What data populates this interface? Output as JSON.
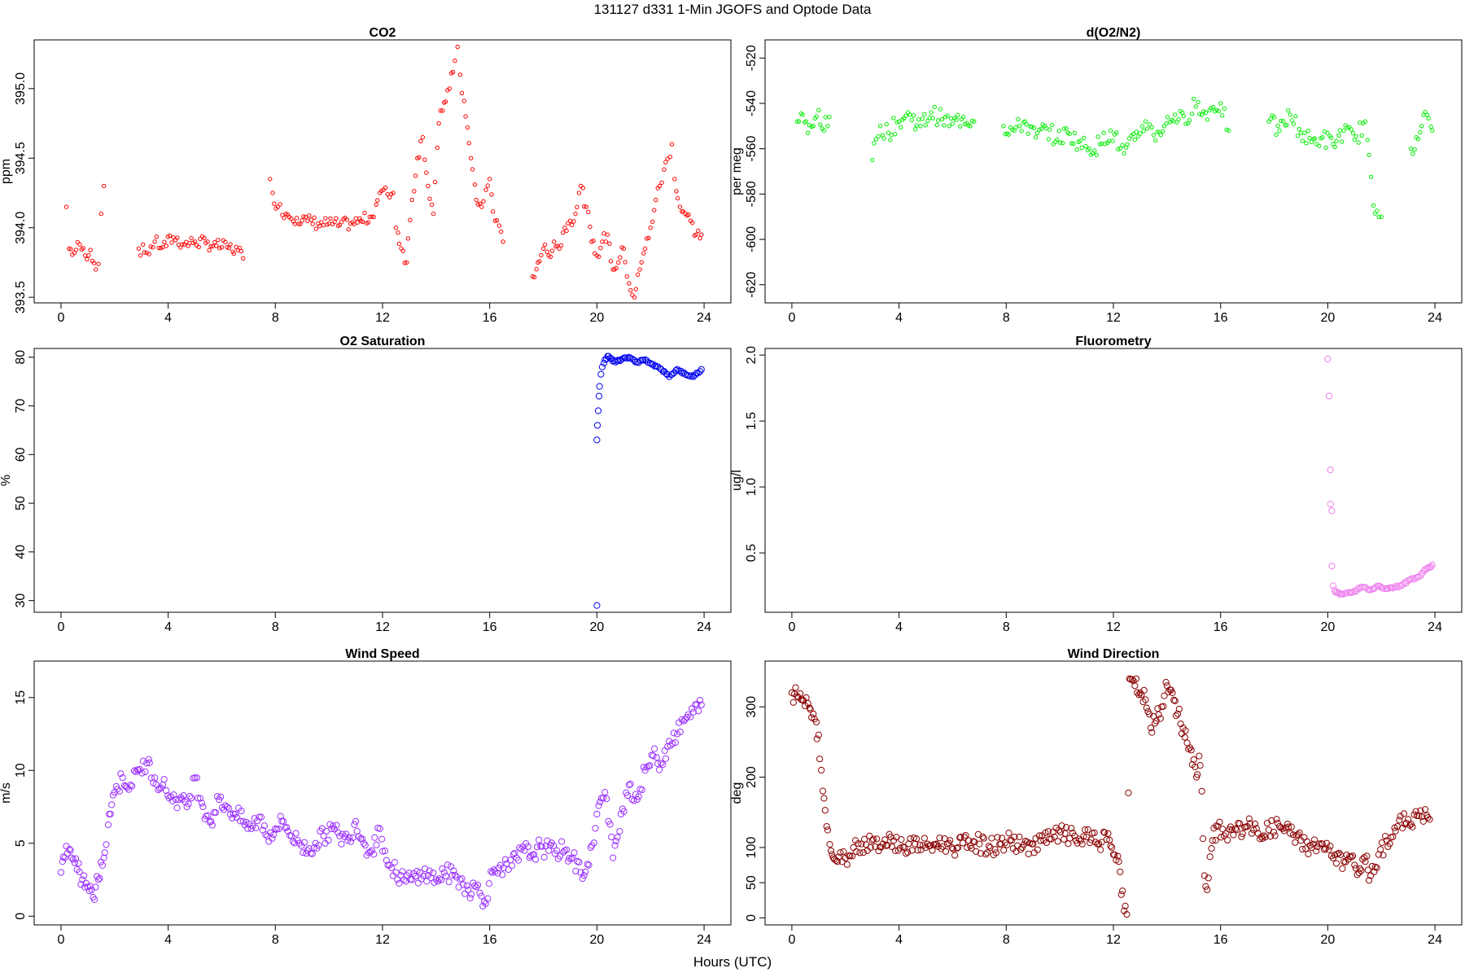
{
  "title": "131127   d331   1-Min  JGOFS and Optode Data",
  "xlabel": "Hours (UTC)",
  "chart_data": [
    {
      "type": "scatter",
      "title": "CO2",
      "ylabel": "ppm",
      "xlim": [
        -1,
        25
      ],
      "ylim": [
        393.46,
        395.35
      ],
      "xticks": [
        0,
        4,
        8,
        12,
        16,
        20,
        24
      ],
      "yticks": [
        393.5,
        394.0,
        394.5,
        395.0
      ],
      "ytick_labels": [
        "393.5",
        "394.0",
        "394.5",
        "395.0"
      ],
      "color": "#ff0000",
      "x": [
        0.2,
        0.3,
        0.5,
        0.7,
        0.9,
        1.1,
        1.3,
        1.4,
        1.5,
        1.6,
        2.9,
        3.2,
        3.5,
        3.8,
        4.2,
        4.6,
        5.0,
        5.4,
        5.8,
        6.2,
        6.6,
        6.8,
        7.8,
        7.9,
        8.1,
        8.4,
        8.8,
        9.2,
        9.6,
        10.0,
        10.4,
        10.8,
        11.2,
        11.6,
        11.9,
        12.4,
        12.5,
        12.9,
        13.1,
        13.3,
        13.5,
        13.7,
        13.9,
        14.1,
        14.3,
        14.5,
        14.7,
        14.8,
        14.9,
        15.1,
        15.3,
        15.5,
        15.7,
        16.0,
        16.2,
        16.5,
        17.6,
        17.8,
        18.0,
        18.2,
        18.4,
        18.6,
        18.8,
        19.0,
        19.2,
        19.4,
        19.6,
        19.8,
        20.0,
        20.2,
        20.4,
        20.6,
        20.8,
        21.0,
        21.2,
        21.4,
        21.6,
        21.8,
        22.0,
        22.2,
        22.8,
        22.9,
        23.1,
        23.3,
        23.5,
        23.7,
        23.9
      ],
      "y": [
        394.15,
        393.85,
        393.82,
        393.88,
        393.8,
        393.84,
        393.7,
        393.74,
        394.1,
        394.3,
        393.85,
        393.82,
        393.9,
        393.86,
        393.93,
        393.88,
        393.9,
        393.89,
        393.87,
        393.86,
        393.84,
        393.78,
        394.35,
        394.25,
        394.15,
        394.1,
        394.07,
        394.05,
        394.03,
        394.03,
        394.02,
        394.03,
        394.05,
        394.08,
        394.25,
        394.25,
        394.0,
        393.75,
        394.2,
        394.5,
        394.65,
        394.3,
        394.1,
        394.75,
        394.9,
        395.0,
        395.2,
        395.3,
        395.1,
        394.8,
        394.5,
        394.2,
        394.15,
        394.35,
        394.05,
        393.9,
        393.65,
        393.75,
        393.85,
        393.8,
        393.9,
        393.85,
        394.0,
        394.05,
        394.1,
        394.3,
        394.15,
        393.9,
        393.8,
        393.9,
        393.95,
        393.7,
        393.75,
        393.85,
        393.6,
        393.5,
        393.7,
        393.85,
        394.0,
        394.2,
        394.6,
        394.35,
        394.15,
        394.1,
        394.05,
        393.95,
        393.95
      ]
    },
    {
      "type": "scatter",
      "title": "d(O2/N2)",
      "ylabel": "per meg",
      "xlim": [
        -1,
        25
      ],
      "ylim": [
        -628,
        -512
      ],
      "xticks": [
        0,
        4,
        8,
        12,
        16,
        20,
        24
      ],
      "yticks": [
        -620,
        -600,
        -580,
        -560,
        -540,
        -520
      ],
      "ytick_labels": [
        "-620",
        "-600",
        "-580",
        "-560",
        "-540",
        "-520"
      ],
      "color": "#00ee00",
      "x": [
        0.2,
        0.4,
        0.6,
        0.8,
        1.0,
        1.2,
        1.4,
        3.0,
        3.3,
        3.6,
        4.0,
        4.4,
        4.8,
        5.2,
        5.6,
        6.0,
        6.4,
        6.8,
        7.9,
        8.3,
        8.7,
        9.1,
        9.5,
        9.9,
        10.3,
        10.7,
        11.1,
        11.5,
        11.9,
        12.4,
        12.8,
        13.2,
        13.5,
        13.9,
        14.3,
        14.7,
        15.0,
        15.3,
        16.0,
        16.3,
        17.8,
        18.2,
        18.6,
        19.0,
        19.4,
        19.8,
        20.2,
        20.6,
        21.0,
        21.4,
        21.7,
        22.0,
        23.1,
        23.3,
        23.5,
        23.7,
        23.9
      ],
      "y": [
        -548,
        -545,
        -553,
        -550,
        -543,
        -552,
        -546,
        -565,
        -550,
        -553,
        -548,
        -545,
        -550,
        -544,
        -547,
        -549,
        -546,
        -548,
        -550,
        -552,
        -548,
        -555,
        -551,
        -556,
        -553,
        -557,
        -560,
        -558,
        -552,
        -562,
        -556,
        -548,
        -554,
        -550,
        -545,
        -549,
        -538,
        -545,
        -540,
        -552,
        -548,
        -552,
        -545,
        -553,
        -557,
        -555,
        -558,
        -552,
        -556,
        -548,
        -585,
        -590,
        -560,
        -555,
        -550,
        -545,
        -552
      ]
    },
    {
      "type": "scatter",
      "title": "O2 Saturation",
      "ylabel": "%",
      "xlim": [
        -1,
        25
      ],
      "ylim": [
        27.6,
        81.8
      ],
      "xticks": [
        0,
        4,
        8,
        12,
        16,
        20,
        24
      ],
      "yticks": [
        30,
        40,
        50,
        60,
        70,
        80
      ],
      "ytick_labels": [
        "30",
        "40",
        "50",
        "60",
        "70",
        "80"
      ],
      "color": "#0000ee",
      "x": [
        20.0,
        20.0,
        20.02,
        20.05,
        20.08,
        20.1,
        20.15,
        20.2,
        20.3,
        20.4,
        20.5,
        20.7,
        20.9,
        21.2,
        21.5,
        21.8,
        22.1,
        22.4,
        22.7,
        23.0,
        23.3,
        23.6,
        23.9
      ],
      "y": [
        29,
        63,
        66,
        69,
        72,
        74,
        76.5,
        78,
        79.5,
        80.2,
        79.8,
        79,
        79.5,
        80,
        79,
        79.5,
        78.5,
        77.5,
        76,
        77.5,
        76.5,
        76,
        77.5
      ]
    },
    {
      "type": "scatter",
      "title": "Fluorometry",
      "ylabel": "ug/l",
      "xlim": [
        -1,
        25
      ],
      "ylim": [
        0.05,
        2.05
      ],
      "xticks": [
        0,
        4,
        8,
        12,
        16,
        20,
        24
      ],
      "yticks": [
        0.5,
        1.0,
        1.5,
        2.0
      ],
      "ytick_labels": [
        "0.5",
        "1.0",
        "1.5",
        "2.0"
      ],
      "color": "#ee82ee",
      "x": [
        20.0,
        20.05,
        20.1,
        20.1,
        20.15,
        20.15,
        20.2,
        20.3,
        20.5,
        20.8,
        21.0,
        21.3,
        21.6,
        21.9,
        22.2,
        22.5,
        22.8,
        23.1,
        23.4,
        23.7,
        23.9
      ],
      "y": [
        1.97,
        1.69,
        1.13,
        0.87,
        0.82,
        0.4,
        0.25,
        0.2,
        0.19,
        0.2,
        0.21,
        0.24,
        0.22,
        0.25,
        0.23,
        0.24,
        0.26,
        0.3,
        0.32,
        0.38,
        0.41
      ]
    },
    {
      "type": "scatter",
      "title": "Wind Speed",
      "ylabel": "m/s",
      "xlim": [
        -1,
        25
      ],
      "ylim": [
        -0.6,
        17.5
      ],
      "xticks": [
        0,
        4,
        8,
        12,
        16,
        20,
        24
      ],
      "yticks": [
        0,
        5,
        10,
        15
      ],
      "ytick_labels": [
        "0",
        "5",
        "10",
        "15"
      ],
      "color": "#9b30ff",
      "x": [
        0.0,
        0.2,
        0.4,
        0.6,
        0.8,
        1.0,
        1.2,
        1.4,
        1.6,
        1.8,
        2.0,
        2.3,
        2.6,
        2.9,
        3.2,
        3.5,
        3.8,
        4.1,
        4.4,
        4.7,
        5.0,
        5.3,
        5.6,
        5.9,
        6.2,
        6.5,
        6.8,
        7.1,
        7.4,
        7.7,
        8.0,
        8.3,
        8.6,
        8.9,
        9.2,
        9.5,
        9.8,
        10.1,
        10.4,
        10.7,
        11.0,
        11.3,
        11.6,
        11.9,
        12.2,
        12.5,
        12.8,
        13.1,
        13.4,
        13.7,
        14.0,
        14.3,
        14.6,
        14.9,
        15.2,
        15.5,
        15.8,
        16.1,
        16.4,
        16.7,
        17.0,
        17.3,
        17.6,
        17.9,
        18.2,
        18.5,
        18.8,
        19.1,
        19.4,
        19.7,
        20.0,
        20.3,
        20.6,
        20.9,
        21.2,
        21.5,
        21.8,
        22.1,
        22.4,
        22.7,
        23.0,
        23.3,
        23.6,
        23.9
      ],
      "y": [
        3,
        4.8,
        4,
        3.2,
        2.5,
        2,
        1.3,
        2.5,
        4,
        7,
        8.5,
        9.5,
        9,
        10,
        10.5,
        9.5,
        9,
        8.2,
        8,
        7.5,
        9.5,
        7.5,
        6.5,
        8,
        7.5,
        7,
        6.5,
        6,
        6.8,
        5.5,
        6,
        6.5,
        5.5,
        5,
        4.5,
        5,
        5.5,
        6,
        5.5,
        5.2,
        6.5,
        5,
        4.5,
        6,
        3.5,
        3,
        2.5,
        2.5,
        3,
        2.8,
        2.5,
        3,
        2.8,
        2.5,
        1.8,
        2,
        1,
        3,
        3.5,
        3.2,
        4,
        4.5,
        4.2,
        4.8,
        4.5,
        4.5,
        4.5,
        4,
        3,
        3.5,
        7,
        8.5,
        4,
        7,
        9,
        8,
        10,
        11,
        10.5,
        12,
        12.5,
        13.5,
        14,
        14.5
      ]
    },
    {
      "type": "scatter",
      "title": "Wind Direction",
      "ylabel": "deg",
      "xlim": [
        -1,
        25
      ],
      "ylim": [
        -10,
        365
      ],
      "xticks": [
        0,
        4,
        8,
        12,
        16,
        20,
        24
      ],
      "yticks": [
        0,
        50,
        100,
        200,
        300
      ],
      "ytick_labels": [
        "0",
        "50",
        "100",
        "200",
        "300"
      ],
      "color": "#8b0000",
      "x": [
        0.0,
        0.2,
        0.4,
        0.6,
        0.8,
        1.0,
        1.1,
        1.2,
        1.3,
        1.5,
        1.7,
        2.0,
        2.3,
        2.6,
        3.0,
        3.4,
        3.8,
        4.2,
        4.6,
        5.0,
        5.4,
        5.8,
        6.2,
        6.6,
        7.0,
        7.4,
        7.8,
        8.2,
        8.6,
        9.0,
        9.4,
        9.8,
        10.2,
        10.6,
        11.0,
        11.4,
        11.8,
        12.0,
        12.2,
        12.4,
        12.5,
        12.6,
        12.8,
        13.0,
        13.2,
        13.4,
        13.6,
        13.8,
        14.0,
        14.2,
        14.4,
        14.6,
        14.8,
        15.0,
        15.1,
        15.2,
        15.3,
        15.4,
        15.5,
        15.7,
        15.9,
        16.2,
        16.6,
        17.0,
        17.4,
        17.8,
        18.2,
        18.6,
        19.0,
        19.4,
        19.8,
        20.2,
        20.6,
        21.0,
        21.2,
        21.4,
        21.6,
        21.9,
        22.2,
        22.6,
        23.0,
        23.4,
        23.8
      ],
      "y": [
        320,
        315,
        310,
        305,
        290,
        260,
        210,
        170,
        130,
        90,
        80,
        85,
        100,
        105,
        110,
        105,
        110,
        100,
        105,
        100,
        105,
        105,
        100,
        110,
        105,
        100,
        105,
        110,
        100,
        105,
        110,
        115,
        120,
        110,
        115,
        105,
        120,
        90,
        80,
        10,
        5,
        340,
        330,
        320,
        310,
        270,
        280,
        300,
        330,
        320,
        290,
        270,
        240,
        225,
        200,
        230,
        180,
        60,
        40,
        110,
        130,
        120,
        125,
        130,
        120,
        125,
        130,
        120,
        110,
        100,
        105,
        85,
        80,
        75,
        70,
        80,
        60,
        90,
        110,
        130,
        140,
        145,
        140
      ]
    }
  ]
}
